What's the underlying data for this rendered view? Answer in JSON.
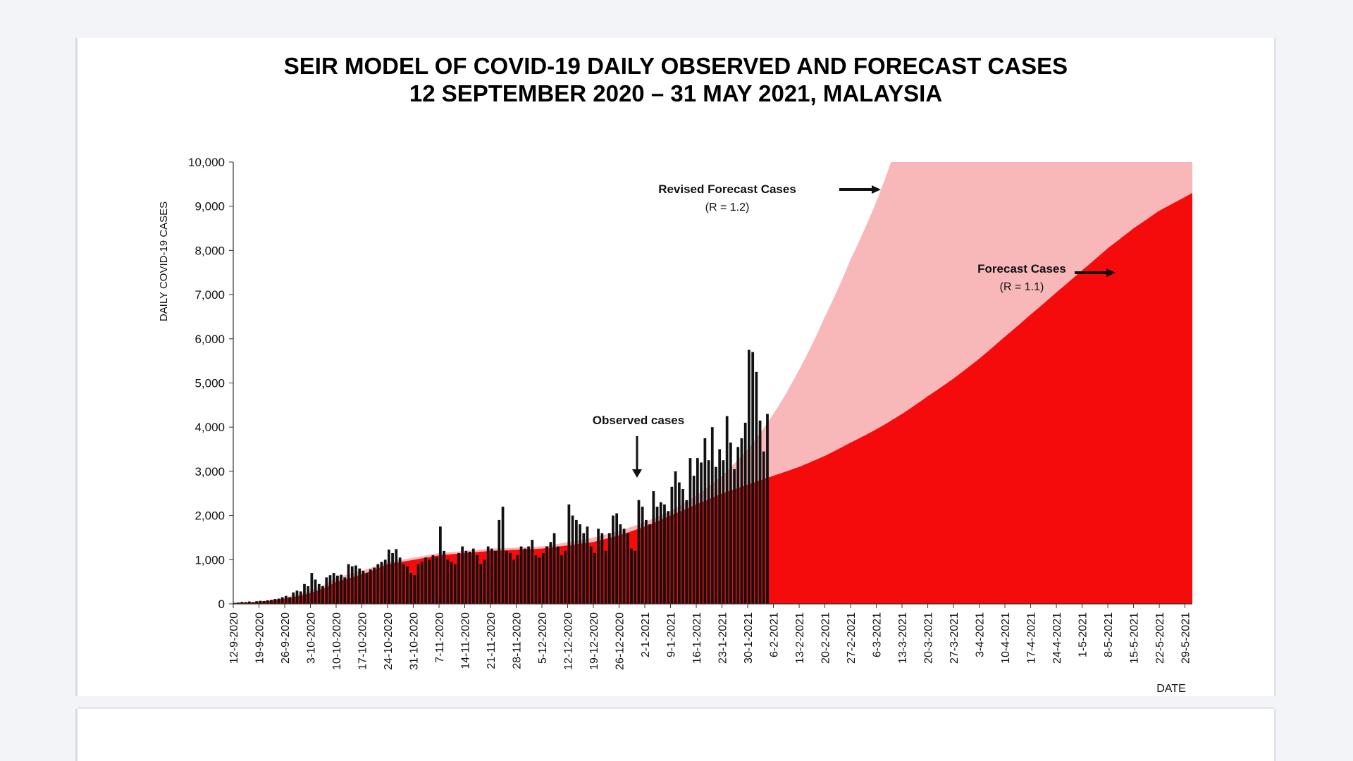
{
  "chart_data": {
    "type": "bar+area",
    "title": "SEIR MODEL OF COVID-19 DAILY OBSERVED AND FORECAST CASES",
    "subtitle": "12 SEPTEMBER 2020 – 31 MAY 2021, MALAYSIA",
    "ylabel": "DAILY COVID-19 CASES",
    "xlabel": "DATE",
    "ylim": [
      0,
      10000
    ],
    "yticks": [
      0,
      1000,
      2000,
      3000,
      4000,
      5000,
      6000,
      7000,
      8000,
      9000,
      10000
    ],
    "ytick_labels": [
      "0",
      "1,000",
      "2,000",
      "3,000",
      "4,000",
      "5,000",
      "6,000",
      "7,000",
      "8,000",
      "9,000",
      "10,000"
    ],
    "x_days_total": 261,
    "x_ticks": [
      {
        "day": 0,
        "label": "12-9-2020"
      },
      {
        "day": 7,
        "label": "19-9-2020"
      },
      {
        "day": 14,
        "label": "26-9-2020"
      },
      {
        "day": 21,
        "label": "3-10-2020"
      },
      {
        "day": 28,
        "label": "10-10-2020"
      },
      {
        "day": 35,
        "label": "17-10-2020"
      },
      {
        "day": 42,
        "label": "24-10-2020"
      },
      {
        "day": 49,
        "label": "31-10-2020"
      },
      {
        "day": 56,
        "label": "7-11-2020"
      },
      {
        "day": 63,
        "label": "14-11-2020"
      },
      {
        "day": 70,
        "label": "21-11-2020"
      },
      {
        "day": 77,
        "label": "28-11-2020"
      },
      {
        "day": 84,
        "label": "5-12-2020"
      },
      {
        "day": 91,
        "label": "12-12-2020"
      },
      {
        "day": 98,
        "label": "19-12-2020"
      },
      {
        "day": 105,
        "label": "26-12-2020"
      },
      {
        "day": 112,
        "label": "2-1-2021"
      },
      {
        "day": 119,
        "label": "9-1-2021"
      },
      {
        "day": 126,
        "label": "16-1-2021"
      },
      {
        "day": 133,
        "label": "23-1-2021"
      },
      {
        "day": 140,
        "label": "30-1-2021"
      },
      {
        "day": 147,
        "label": "6-2-2021"
      },
      {
        "day": 154,
        "label": "13-2-2021"
      },
      {
        "day": 161,
        "label": "20-2-2021"
      },
      {
        "day": 168,
        "label": "27-2-2021"
      },
      {
        "day": 175,
        "label": "6-3-2021"
      },
      {
        "day": 182,
        "label": "13-3-2021"
      },
      {
        "day": 189,
        "label": "20-3-2021"
      },
      {
        "day": 196,
        "label": "27-3-2021"
      },
      {
        "day": 203,
        "label": "3-4-2021"
      },
      {
        "day": 210,
        "label": "10-4-2021"
      },
      {
        "day": 217,
        "label": "17-4-2021"
      },
      {
        "day": 224,
        "label": "24-4-2021"
      },
      {
        "day": 231,
        "label": "1-5-2021"
      },
      {
        "day": 238,
        "label": "8-5-2021"
      },
      {
        "day": 245,
        "label": "15-5-2021"
      },
      {
        "day": 252,
        "label": "22-5-2021"
      },
      {
        "day": 259,
        "label": "29-5-2021"
      }
    ],
    "series": [
      {
        "name": "Revised Forecast Cases (R = 1.2)",
        "type": "area",
        "color": "#f8b7b8",
        "points": [
          [
            0,
            20
          ],
          [
            14,
            150
          ],
          [
            28,
            600
          ],
          [
            42,
            950
          ],
          [
            56,
            1150
          ],
          [
            70,
            1250
          ],
          [
            84,
            1300
          ],
          [
            98,
            1500
          ],
          [
            105,
            1650
          ],
          [
            112,
            1850
          ],
          [
            119,
            2100
          ],
          [
            126,
            2450
          ],
          [
            133,
            2900
          ],
          [
            140,
            3500
          ],
          [
            147,
            4300
          ],
          [
            154,
            5300
          ],
          [
            161,
            6500
          ],
          [
            168,
            7800
          ],
          [
            175,
            9100
          ],
          [
            179,
            10000
          ],
          [
            261,
            10000
          ]
        ]
      },
      {
        "name": "Forecast Cases (R = 1.1)",
        "type": "area",
        "color": "#f50b0b",
        "points": [
          [
            0,
            20
          ],
          [
            14,
            120
          ],
          [
            28,
            500
          ],
          [
            42,
            900
          ],
          [
            56,
            1100
          ],
          [
            70,
            1200
          ],
          [
            84,
            1250
          ],
          [
            98,
            1400
          ],
          [
            105,
            1550
          ],
          [
            112,
            1750
          ],
          [
            119,
            2000
          ],
          [
            126,
            2250
          ],
          [
            133,
            2500
          ],
          [
            140,
            2700
          ],
          [
            147,
            2900
          ],
          [
            154,
            3100
          ],
          [
            161,
            3350
          ],
          [
            168,
            3650
          ],
          [
            175,
            3950
          ],
          [
            182,
            4300
          ],
          [
            189,
            4700
          ],
          [
            196,
            5100
          ],
          [
            203,
            5550
          ],
          [
            210,
            6050
          ],
          [
            217,
            6550
          ],
          [
            224,
            7050
          ],
          [
            231,
            7550
          ],
          [
            238,
            8050
          ],
          [
            245,
            8500
          ],
          [
            252,
            8900
          ],
          [
            261,
            9300
          ]
        ]
      },
      {
        "name": "Observed cases",
        "type": "bar",
        "color": "#111111",
        "start_day": 0,
        "values": [
          20,
          30,
          45,
          40,
          55,
          35,
          60,
          70,
          65,
          80,
          90,
          110,
          120,
          150,
          180,
          150,
          260,
          300,
          280,
          450,
          400,
          700,
          550,
          450,
          400,
          600,
          650,
          700,
          640,
          660,
          600,
          900,
          850,
          870,
          800,
          750,
          700,
          780,
          820,
          900,
          950,
          1000,
          1230,
          1150,
          1240,
          1050,
          900,
          850,
          700,
          650,
          900,
          950,
          1050,
          1000,
          1100,
          1050,
          1750,
          1200,
          1000,
          950,
          900,
          1150,
          1300,
          1200,
          1180,
          1250,
          1100,
          900,
          1000,
          1300,
          1250,
          1200,
          1900,
          2200,
          1200,
          1150,
          1000,
          1100,
          1300,
          1250,
          1300,
          1450,
          1100,
          1050,
          1150,
          1300,
          1400,
          1600,
          1300,
          1100,
          1200,
          2250,
          2000,
          1900,
          1800,
          1600,
          1750,
          1300,
          1150,
          1700,
          1600,
          1200,
          1600,
          2000,
          2050,
          1800,
          1700,
          1600,
          1250,
          1200,
          2350,
          2200,
          1900,
          1800,
          2550,
          2200,
          2300,
          2250,
          2100,
          2650,
          3000,
          2750,
          2600,
          2350,
          3300,
          2900,
          3300,
          3200,
          3750,
          3250,
          4000,
          3100,
          3500,
          3250,
          4250,
          3650,
          3050,
          3550,
          3750,
          4100,
          5750,
          5700,
          5250,
          4150,
          3450,
          4300
        ]
      }
    ],
    "annotations": [
      {
        "text": "Observed cases"
      },
      {
        "text": "Revised Forecast Cases",
        "subtext": "(R = 1.2)"
      },
      {
        "text": "Forecast Cases",
        "subtext": "(R = 1.1)"
      }
    ]
  }
}
